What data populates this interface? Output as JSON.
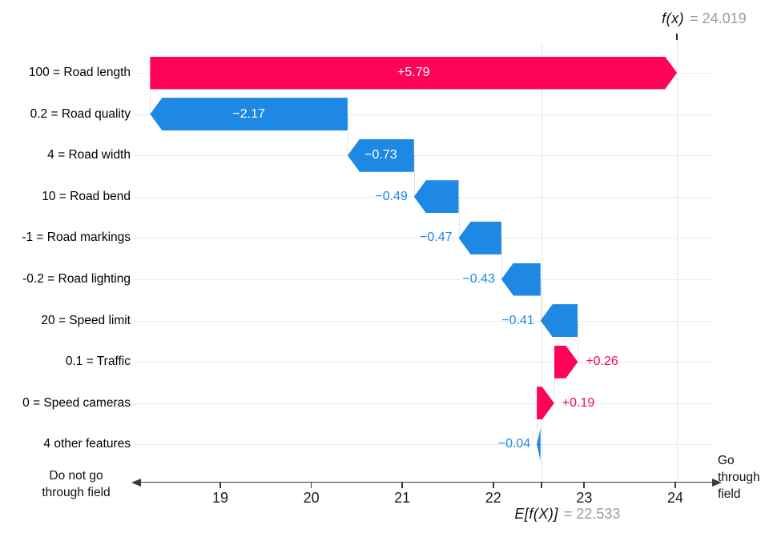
{
  "chart_data": {
    "type": "waterfall",
    "title": "",
    "fx": {
      "label": "f(x)",
      "value_display": "= 24.019",
      "value": 24.019
    },
    "efx": {
      "label": "E[f(X)]",
      "value_display": "= 22.533",
      "value": 22.533
    },
    "x_ticks": [
      19,
      20,
      21,
      22,
      23,
      24
    ],
    "xlim": [
      18.1,
      24.45
    ],
    "grid": "horizontal-dotted",
    "features": [
      {
        "label": "100 = Road length",
        "value": 5.79,
        "display": "+5.79",
        "label_inside": true
      },
      {
        "label": "0.2 = Road quality",
        "value": -2.17,
        "display": "−2.17",
        "label_inside": true
      },
      {
        "label": "4 = Road width",
        "value": -0.73,
        "display": "−0.73",
        "label_inside": true
      },
      {
        "label": "10 = Road bend",
        "value": -0.49,
        "display": "−0.49",
        "label_inside": false
      },
      {
        "label": "-1 = Road markings",
        "value": -0.47,
        "display": "−0.47",
        "label_inside": false
      },
      {
        "label": "-0.2 = Road lighting",
        "value": -0.43,
        "display": "−0.43",
        "label_inside": false
      },
      {
        "label": "20 = Speed limit",
        "value": -0.41,
        "display": "−0.41",
        "label_inside": false
      },
      {
        "label": "0.1 = Traffic",
        "value": 0.26,
        "display": "+0.26",
        "label_inside": false
      },
      {
        "label": "0 = Speed cameras",
        "value": 0.19,
        "display": "+0.19",
        "label_inside": false
      },
      {
        "label": "4 other features",
        "value": -0.04,
        "display": "−0.04",
        "label_inside": false
      }
    ],
    "axis_endpoints": {
      "left_text": "Do not go\nthrough field",
      "right_text": "Go\nthrough\nfield"
    },
    "colors": {
      "positive": "#fe0458",
      "negative": "#1e88e5",
      "grid": "#d9d9d9",
      "axis": "#3a3a3a",
      "muted_text": "#9b9b9b",
      "text": "#111111"
    }
  }
}
